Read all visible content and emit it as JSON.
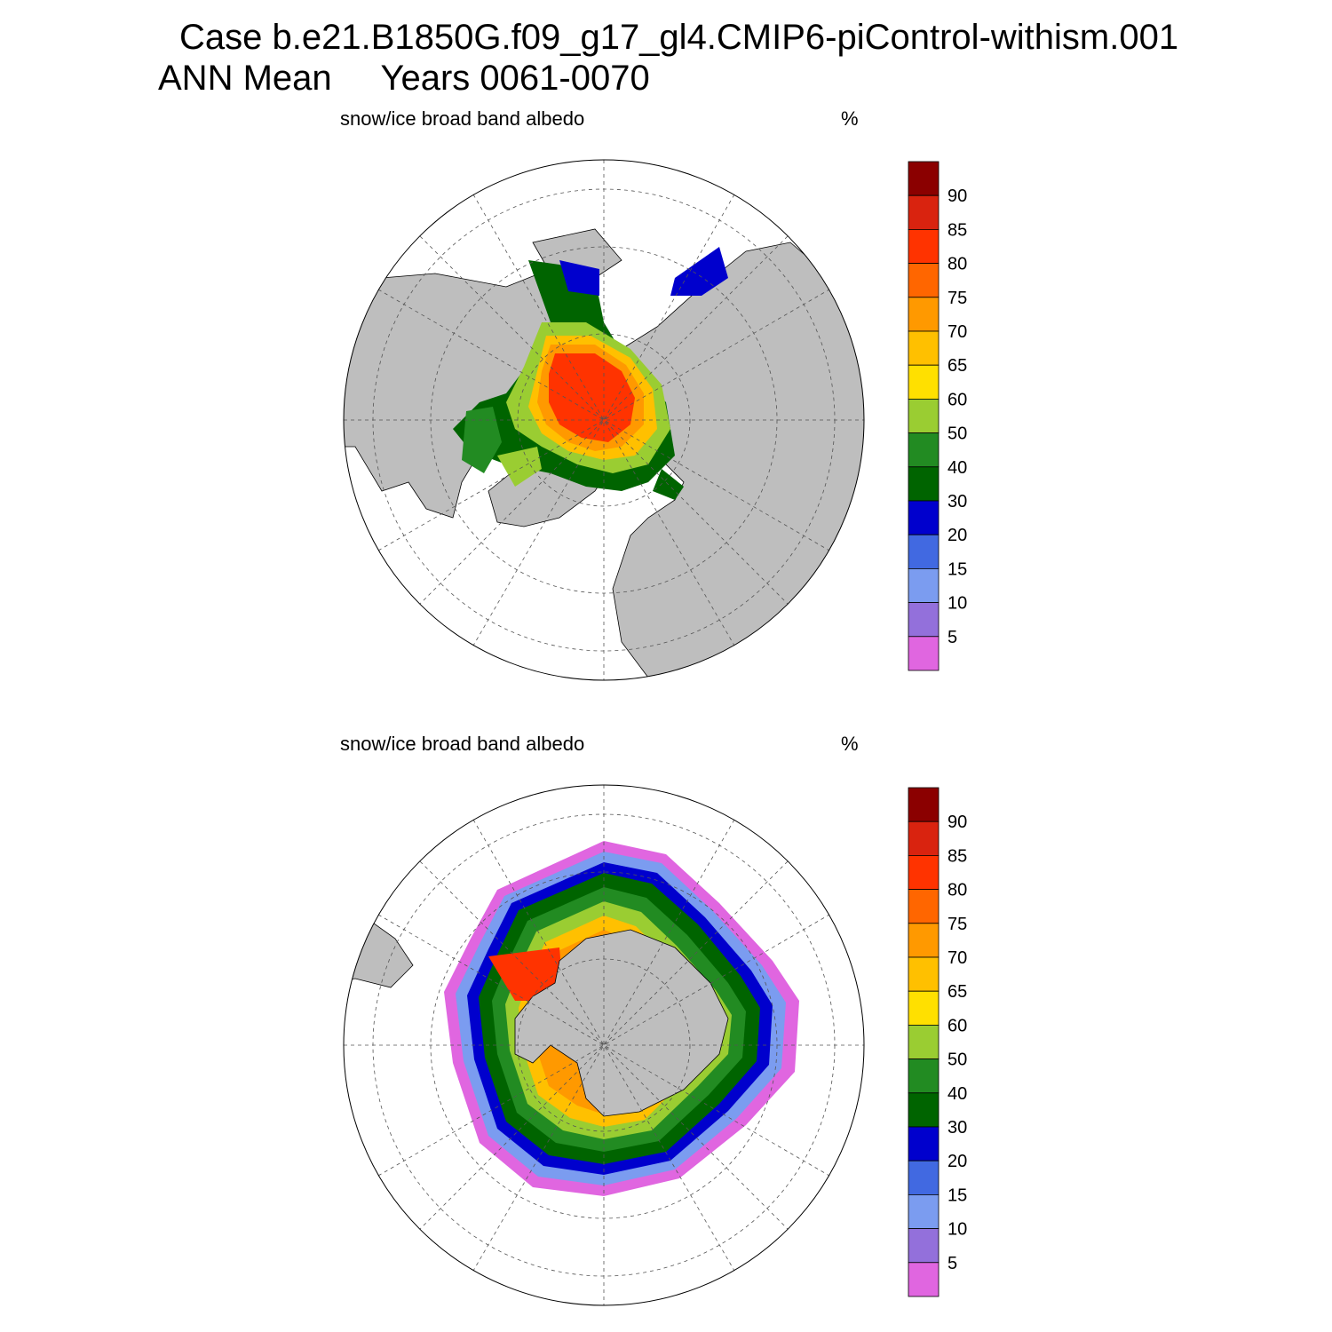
{
  "header": {
    "case_line": "Case b.e21.B1850G.f09_g17_gl4.CMIP6-piControl-withism.001",
    "mean_line": "ANN Mean     Years 0061-0070"
  },
  "colors": {
    "land": "#bebebe",
    "ocean": "#ffffff",
    "grid": "#555555"
  },
  "panels": [
    {
      "hemisphere": "north",
      "title": "snow/ice broad band albedo",
      "units": "%"
    },
    {
      "hemisphere": "south",
      "title": "snow/ice broad band albedo",
      "units": "%"
    }
  ],
  "colorbar": {
    "labels": [
      "90",
      "85",
      "80",
      "75",
      "70",
      "65",
      "60",
      "50",
      "40",
      "30",
      "20",
      "15",
      "10",
      "5"
    ],
    "colors": [
      "#8b0000",
      "#d9230f",
      "#ff3300",
      "#ff6600",
      "#ff9900",
      "#ffc000",
      "#ffe000",
      "#9acd32",
      "#228b22",
      "#006400",
      "#0000cd",
      "#4169e1",
      "#7b9cf0",
      "#9370db",
      "#e066e0"
    ]
  }
}
